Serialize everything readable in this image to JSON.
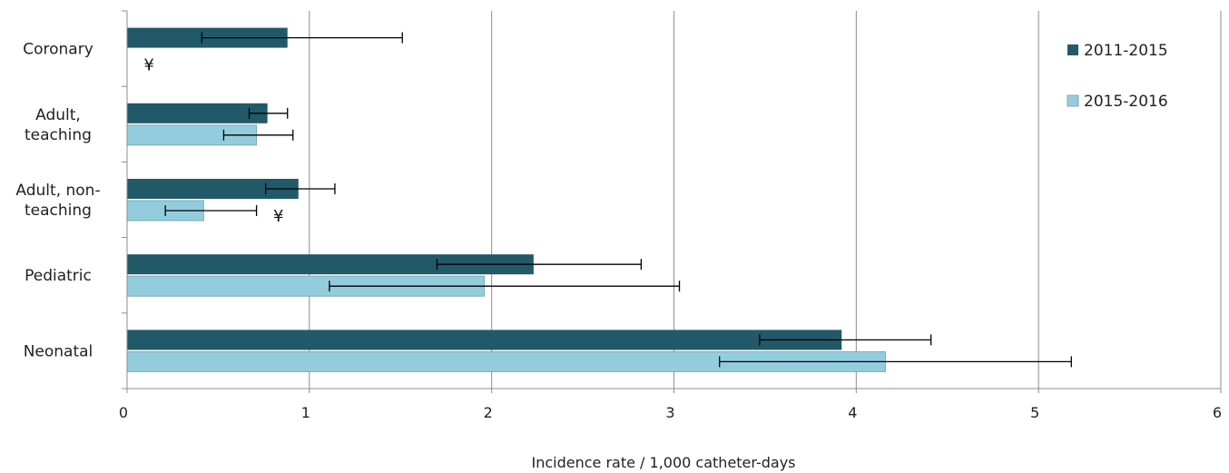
{
  "chart_data": {
    "type": "bar",
    "orientation": "horizontal",
    "categories": [
      "Coronary",
      "Adult, teaching",
      "Adult, non-teaching",
      "Pediatric",
      "Neonatal"
    ],
    "category_label_lines": [
      [
        "Coronary"
      ],
      [
        "Adult,",
        "teaching"
      ],
      [
        "Adult, non-",
        "teaching"
      ],
      [
        "Pediatric"
      ],
      [
        "Neonatal"
      ]
    ],
    "series": [
      {
        "name": "2011-2015",
        "color": "#215968",
        "values": [
          0.88,
          0.77,
          0.94,
          2.23,
          3.92
        ],
        "ci_low": [
          0.41,
          0.67,
          0.76,
          1.7,
          3.47
        ],
        "ci_high": [
          1.51,
          0.88,
          1.14,
          2.82,
          4.41
        ]
      },
      {
        "name": "2015-2016",
        "color": "#93CDDD",
        "values": [
          null,
          0.71,
          0.42,
          1.96,
          4.16
        ],
        "ci_low": [
          null,
          0.53,
          0.21,
          1.11,
          3.25
        ],
        "ci_high": [
          null,
          0.91,
          0.71,
          3.03,
          5.18
        ]
      }
    ],
    "annotations": [
      {
        "text": "¥",
        "category": "Coronary",
        "series": "2015-2016",
        "x": 0.12
      },
      {
        "text": "¥",
        "category": "Adult, non-teaching",
        "series": "2015-2016",
        "x": 0.83
      }
    ],
    "xlabel": "Incidence rate / 1,000 catheter-days",
    "ylabel": "",
    "title": "",
    "xlim": [
      0,
      6
    ],
    "xticks": [
      0,
      1,
      2,
      3,
      4,
      5,
      6
    ],
    "grid": "vertical",
    "legend": {
      "position": "right",
      "entries": [
        "2011-2015",
        "2015-2016"
      ]
    }
  }
}
